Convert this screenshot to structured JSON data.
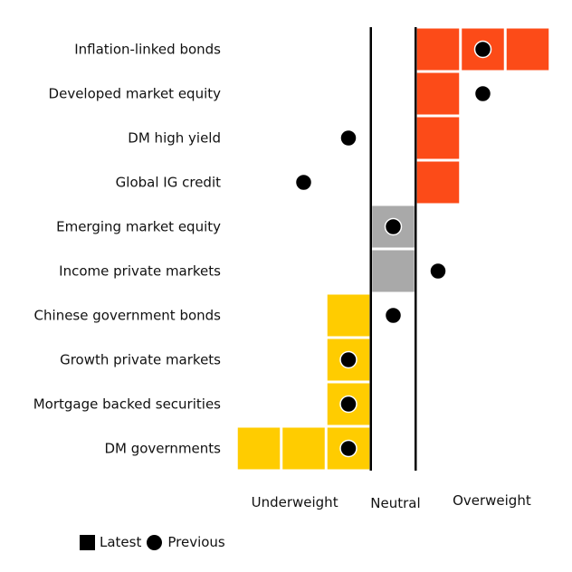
{
  "chart_data": {
    "type": "table",
    "x_categories": [
      "Underweight",
      "Neutral",
      "Overweight"
    ],
    "scale_min": -3,
    "scale_max": 3,
    "rows": [
      {
        "label": "Inflation-linked bonds",
        "latest": 3,
        "previous": 2,
        "stance": "overweight"
      },
      {
        "label": "Developed market equity",
        "latest": 1,
        "previous": 2,
        "stance": "overweight"
      },
      {
        "label": "DM high yield",
        "latest": 1,
        "previous": -1,
        "stance": "overweight"
      },
      {
        "label": "Global IG credit",
        "latest": 1,
        "previous": -2,
        "stance": "overweight"
      },
      {
        "label": "Emerging market equity",
        "latest": 0,
        "previous": 0,
        "stance": "neutral"
      },
      {
        "label": "Income private markets",
        "latest": 0,
        "previous": 1,
        "stance": "neutral"
      },
      {
        "label": "Chinese government bonds",
        "latest": -1,
        "previous": 0,
        "stance": "underweight"
      },
      {
        "label": "Growth private markets",
        "latest": -1,
        "previous": -1,
        "stance": "underweight"
      },
      {
        "label": "Mortgage backed securities",
        "latest": -1,
        "previous": -1,
        "stance": "underweight"
      },
      {
        "label": "DM governments",
        "latest": -3,
        "previous": -1,
        "stance": "underweight"
      }
    ],
    "colors": {
      "overweight": "#fc4b18",
      "neutral": "#a9a9a9",
      "underweight": "#ffcc00",
      "marker": "#000000"
    },
    "legend": {
      "latest_label": "Latest",
      "previous_label": "Previous",
      "placement": "bottom-left"
    }
  }
}
